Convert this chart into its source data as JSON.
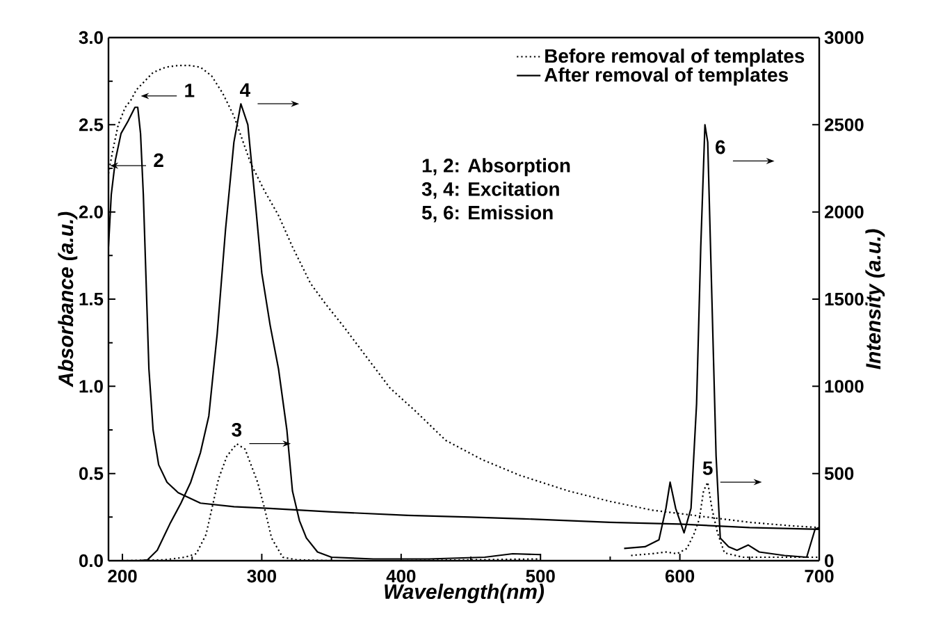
{
  "chart_data": {
    "type": "line",
    "xlabel": "Wavelength(nm)",
    "ylabel": "Absorbance (a.u.)",
    "y2label": "Intensity (a.u.)",
    "xlim": [
      190,
      700
    ],
    "ylim": [
      0,
      3.0
    ],
    "y2lim": [
      0,
      3000
    ],
    "xticks": [
      200,
      {
        "value": 250,
        "label": null
      },
      300,
      {
        "value": 350,
        "label": null
      },
      400,
      {
        "value": 450,
        "label": null
      },
      500,
      {
        "value": 550,
        "label": null
      },
      600,
      {
        "value": 650,
        "label": null
      },
      700
    ],
    "yticks": [
      {
        "value": 0,
        "label": "0.0"
      },
      {
        "value": 0.25,
        "label": null
      },
      0.5,
      {
        "value": 0.75,
        "label": null
      },
      {
        "value": 1,
        "label": "1.0"
      },
      {
        "value": 1.25,
        "label": null
      },
      1.5,
      {
        "value": 1.75,
        "label": null
      },
      {
        "value": 2,
        "label": "2.0"
      },
      {
        "value": 2.25,
        "label": null
      },
      2.5,
      {
        "value": 2.75,
        "label": null
      },
      {
        "value": 3,
        "label": "3.0"
      }
    ],
    "y2ticks": [
      0,
      500,
      1000,
      1500,
      2000,
      2500,
      3000
    ],
    "legend": "top right",
    "grid": false,
    "marker": "none",
    "series": [
      {
        "name": "Before removal of templates",
        "color": "#000000",
        "line_style": "dotted",
        "x": [
          190,
          193,
          197,
          202,
          206,
          210,
          216,
          222,
          231,
          240,
          248,
          256,
          264,
          272,
          280,
          292,
          302,
          312,
          322,
          335,
          346,
          359,
          375,
          392,
          410,
          432,
          458,
          485,
          520,
          550,
          580,
          600,
          620,
          650,
          680,
          700
        ],
        "values": [
          2.22,
          2.35,
          2.5,
          2.6,
          2.64,
          2.7,
          2.75,
          2.8,
          2.83,
          2.84,
          2.84,
          2.83,
          2.78,
          2.68,
          2.55,
          2.28,
          2.12,
          1.98,
          1.8,
          1.59,
          1.47,
          1.34,
          1.17,
          0.99,
          0.86,
          0.69,
          0.58,
          0.49,
          0.4,
          0.34,
          0.29,
          0.27,
          0.25,
          0.22,
          0.2,
          0.19
        ]
      },
      {
        "name": "After removal of templates",
        "color": "#000000",
        "line_style": "solid",
        "x": [
          190,
          192,
          195,
          199,
          204,
          209,
          211,
          213,
          215,
          217,
          219,
          222,
          226,
          232,
          240,
          256,
          280,
          306,
          350,
          405,
          450,
          488,
          550,
          600,
          650,
          700
        ],
        "values": [
          1.8,
          2.1,
          2.3,
          2.45,
          2.52,
          2.6,
          2.6,
          2.45,
          2.1,
          1.6,
          1.1,
          0.75,
          0.55,
          0.45,
          0.39,
          0.33,
          0.31,
          0.3,
          0.28,
          0.26,
          0.25,
          0.24,
          0.22,
          0.21,
          0.19,
          0.18
        ]
      },
      {
        "color": "#000000",
        "line_style": "dotted",
        "axis": "y2",
        "x": [
          200,
          230,
          245,
          253,
          260,
          269,
          275,
          282,
          288,
          297,
          302,
          307,
          315,
          325,
          350,
          400,
          450,
          500
        ],
        "values": [
          0,
          5,
          20,
          40,
          150,
          470,
          600,
          670,
          640,
          450,
          300,
          130,
          20,
          5,
          0,
          0,
          5,
          10
        ]
      },
      {
        "color": "#000000",
        "line_style": "solid",
        "axis": "y2",
        "x": [
          200,
          212,
          218,
          225,
          234,
          242,
          249,
          256,
          262,
          268,
          274,
          280,
          285,
          290,
          296,
          300,
          306,
          312,
          318,
          322,
          327,
          332,
          340,
          350,
          380,
          420,
          460,
          480,
          500
        ],
        "values": [
          0,
          0,
          5,
          60,
          210,
          330,
          450,
          620,
          830,
          1300,
          1900,
          2400,
          2620,
          2500,
          2000,
          1650,
          1350,
          1100,
          750,
          400,
          230,
          130,
          50,
          20,
          10,
          10,
          20,
          40,
          35
        ]
      },
      {
        "color": "#000000",
        "line_style": "dotted",
        "axis": "y2",
        "x": [
          565,
          580,
          590,
          598,
          605,
          610,
          614,
          617,
          620,
          623,
          627,
          632,
          645,
          670,
          700
        ],
        "values": [
          30,
          40,
          50,
          40,
          70,
          150,
          240,
          400,
          450,
          300,
          160,
          45,
          20,
          20,
          20
        ]
      },
      {
        "color": "#000000",
        "line_style": "solid",
        "axis": "y2",
        "x": [
          560,
          575,
          585,
          590,
          593,
          597,
          603,
          608,
          612,
          615,
          618,
          620,
          623,
          626,
          629,
          635,
          641,
          649,
          657,
          675,
          691,
          697,
          700
        ],
        "values": [
          70,
          80,
          120,
          300,
          450,
          300,
          160,
          300,
          900,
          1800,
          2500,
          2400,
          1500,
          600,
          130,
          80,
          60,
          90,
          50,
          30,
          20,
          180,
          190
        ]
      }
    ],
    "annotations": [
      "1",
      "2",
      "3",
      "4",
      "5",
      "6",
      "1, 2: Absorption",
      "3, 4: Excitation",
      "5, 6: Emission"
    ]
  }
}
